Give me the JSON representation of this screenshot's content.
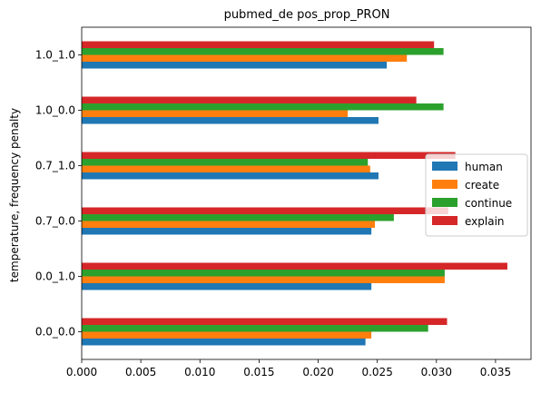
{
  "chart_data": {
    "type": "bar",
    "orientation": "horizontal",
    "title": "pubmed_de pos_prop_PRON",
    "xlabel": "",
    "ylabel": "temperature, frequency penalty",
    "categories": [
      "0.0_0.0",
      "0.0_1.0",
      "0.7_0.0",
      "0.7_1.0",
      "1.0_0.0",
      "1.0_1.0"
    ],
    "xlim": [
      0,
      0.038
    ],
    "xticks": [
      "0.000",
      "0.005",
      "0.010",
      "0.015",
      "0.020",
      "0.025",
      "0.030",
      "0.035"
    ],
    "xtick_values": [
      0,
      0.005,
      0.01,
      0.015,
      0.02,
      0.025,
      0.03,
      0.035
    ],
    "legend_position": "center-right",
    "grid": false,
    "series": [
      {
        "name": "human",
        "color": "#1f77b4",
        "values": [
          0.024,
          0.0245,
          0.0245,
          0.0251,
          0.0251,
          0.0258
        ]
      },
      {
        "name": "create",
        "color": "#ff7f0e",
        "values": [
          0.0245,
          0.0307,
          0.0248,
          0.0244,
          0.0225,
          0.0275
        ]
      },
      {
        "name": "continue",
        "color": "#2ca02c",
        "values": [
          0.0293,
          0.0307,
          0.0264,
          0.0242,
          0.0306,
          0.0306
        ]
      },
      {
        "name": "explain",
        "color": "#d62728",
        "values": [
          0.0309,
          0.036,
          0.031,
          0.0316,
          0.0283,
          0.0298
        ]
      }
    ]
  }
}
